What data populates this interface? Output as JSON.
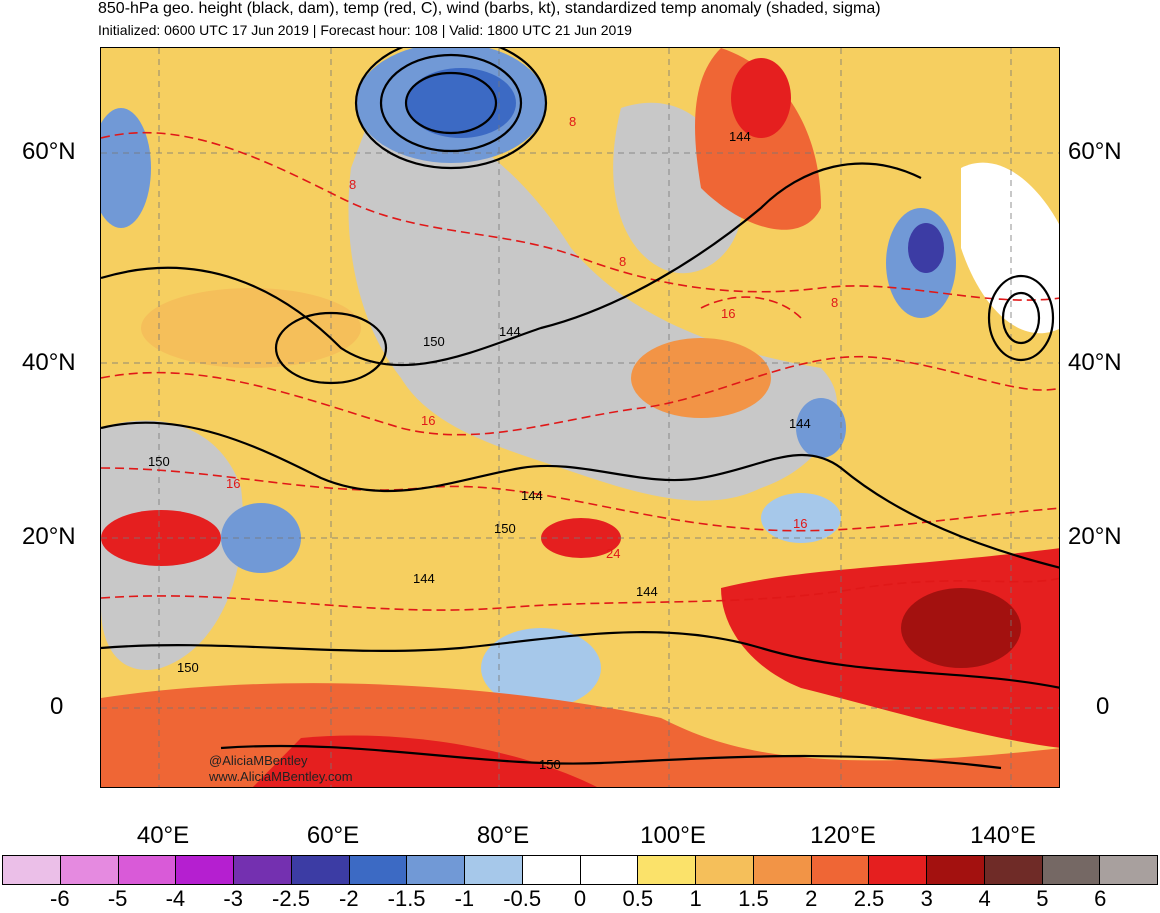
{
  "header": {
    "title": "850-hPa geo. height (black, dam), temp (red, C), wind (barbs, kt), standardized temp anomaly (shaded, sigma)",
    "subtitle": "Initialized: 0600 UTC 17 Jun 2019 | Forecast hour: 108 | Valid: 1800 UTC 21 Jun 2019"
  },
  "map": {
    "lat_labels": [
      "60°N",
      "40°N",
      "20°N",
      "0"
    ],
    "lon_labels": [
      "40°E",
      "60°E",
      "80°E",
      "100°E",
      "120°E",
      "140°E"
    ],
    "height_labels": [
      "144",
      "150",
      "144",
      "150",
      "144",
      "144",
      "150",
      "144",
      "144",
      "150",
      "150"
    ],
    "temp_labels": [
      "8",
      "8",
      "16",
      "8",
      "16",
      "16",
      "16",
      "8",
      "24"
    ],
    "credit_handle": "@AliciaMBentley",
    "credit_url": "www.AliciaMBentley.com"
  },
  "colorbar": {
    "labels": [
      "-6",
      "-5",
      "-4",
      "-3",
      "-2.5",
      "-2",
      "-1.5",
      "-1",
      "-0.5",
      "0",
      "0.5",
      "1",
      "1.5",
      "2",
      "2.5",
      "3",
      "4",
      "5",
      "6"
    ],
    "colors": [
      "#ebbfe8",
      "#e58ae0",
      "#d95ad8",
      "#b51fd0",
      "#7430b0",
      "#3c3ca4",
      "#3c6ac4",
      "#7199d6",
      "#a6c8ea",
      "#ffffff",
      "#ffffff",
      "#fbe26a",
      "#f5bf5a",
      "#f29446",
      "#ef6635",
      "#e51f1f",
      "#a3110f",
      "#6f2b27",
      "#756864",
      "#a8a09e"
    ]
  }
}
